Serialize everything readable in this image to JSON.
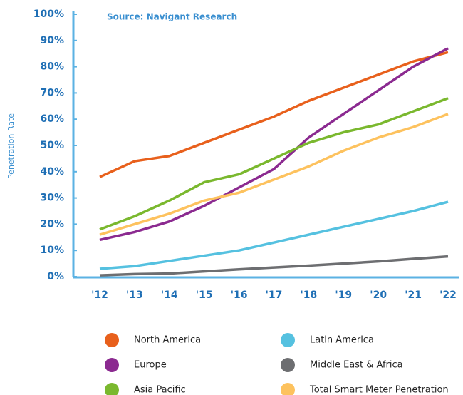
{
  "chart_data": {
    "type": "line",
    "source": "Source: Navigant Research",
    "y_axis_label": "Penetration Rate",
    "categories": [
      "'12",
      "'13",
      "'14",
      "'15",
      "'16",
      "'17",
      "'18",
      "'19",
      "'20",
      "'21",
      "'22"
    ],
    "series": [
      {
        "name": "North America",
        "color": "#e8601c",
        "values": [
          38,
          44,
          46,
          51,
          56,
          61,
          67,
          72,
          77,
          82,
          85.5
        ]
      },
      {
        "name": "Latin America",
        "color": "#55c1e0",
        "values": [
          3,
          4,
          6,
          8,
          10,
          13,
          16,
          19,
          22,
          25,
          28.5
        ]
      },
      {
        "name": "Europe",
        "color": "#8b2a90",
        "values": [
          14,
          17,
          21,
          27,
          34,
          41,
          53,
          62,
          71,
          80,
          87
        ]
      },
      {
        "name": "Middle East & Africa",
        "color": "#6d6e71",
        "values": [
          0.5,
          1,
          1.2,
          2,
          2.8,
          3.5,
          4.2,
          5,
          5.8,
          6.8,
          7.7
        ]
      },
      {
        "name": "Asia Pacific",
        "color": "#7ab82e",
        "values": [
          18,
          23,
          29,
          36,
          39,
          45,
          51,
          55,
          58,
          63,
          68
        ]
      },
      {
        "name": "Total Smart Meter Penetration",
        "color": "#fdc25e",
        "values": [
          16,
          20,
          24,
          29,
          32,
          37,
          42,
          48,
          53,
          57,
          62
        ]
      }
    ],
    "ylim": [
      0,
      100
    ],
    "yticks": [
      {
        "value": 0,
        "label": "0%"
      },
      {
        "value": 10,
        "label": "10%"
      },
      {
        "value": 20,
        "label": "20%"
      },
      {
        "value": 30,
        "label": "30%"
      },
      {
        "value": 40,
        "label": "40%"
      },
      {
        "value": 50,
        "label": "50%"
      },
      {
        "value": 60,
        "label": "60%"
      },
      {
        "value": 70,
        "label": "70%"
      },
      {
        "value": 80,
        "label": "80%"
      },
      {
        "value": 90,
        "label": "90%"
      },
      {
        "value": 100,
        "label": "100%"
      }
    ]
  }
}
